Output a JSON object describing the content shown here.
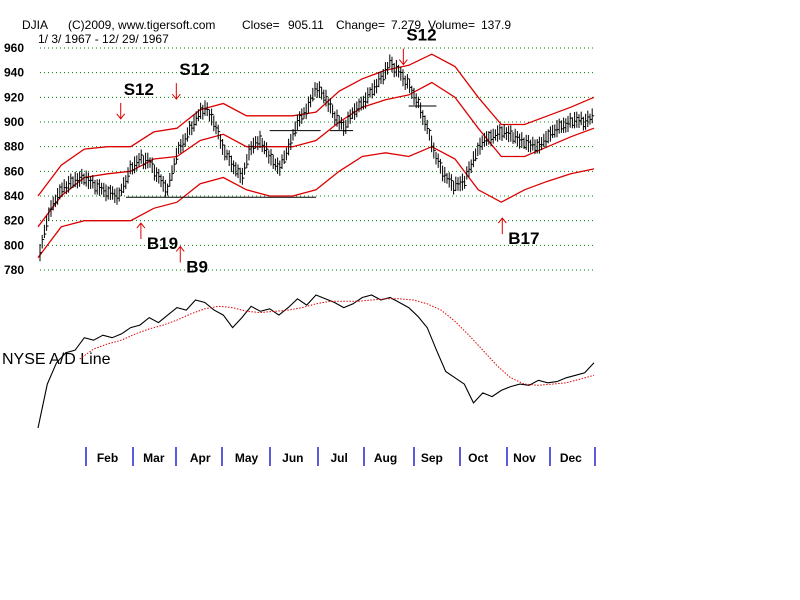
{
  "header": {
    "symbol": "DJIA",
    "copyright": "(C)2009, www.tigersoft.com",
    "close_label": "Close=",
    "close_value": "905.11",
    "change_label": "Change=",
    "change_value": "7.279",
    "volume_label": "Volume=",
    "volume_value": "137.9",
    "date_range": "1/ 3/ 1967 - 12/ 29/ 1967"
  },
  "indicator_label": "NYSE A/D Line",
  "colors": {
    "price_bars": "#000000",
    "bands": "#dd0000",
    "grid": "#008000",
    "month_ticks": "#0000cc",
    "signal_arrows": "#dd0000",
    "ad_line": "#000000",
    "ad_moving_average": "#dd0000"
  },
  "chart_data": {
    "type": "line",
    "ylim": [
      780,
      960
    ],
    "yticks": [
      960,
      940,
      920,
      900,
      880,
      860,
      840,
      820,
      800,
      780
    ],
    "grid": "horizontal dotted",
    "xlim": [
      0,
      12
    ],
    "months": [
      "Feb",
      "Mar",
      "Apr",
      "May",
      "Jun",
      "Jul",
      "Aug",
      "Sep",
      "Oct",
      "Nov",
      "Dec"
    ],
    "month_starts": [
      1,
      2,
      3,
      4,
      5,
      6,
      7,
      8,
      9,
      10,
      11
    ],
    "price": {
      "x": [
        0,
        0.1,
        0.25,
        0.5,
        0.75,
        1.0,
        1.25,
        1.5,
        1.75,
        2.0,
        2.2,
        2.4,
        2.6,
        2.8,
        3.0,
        3.2,
        3.4,
        3.6,
        3.8,
        4.0,
        4.2,
        4.4,
        4.6,
        4.8,
        5.0,
        5.2,
        5.4,
        5.6,
        5.8,
        6.0,
        6.2,
        6.4,
        6.6,
        6.8,
        7.0,
        7.2,
        7.4,
        7.6,
        7.8,
        8.0,
        8.2,
        8.4,
        8.6,
        8.8,
        9.0,
        9.2,
        9.4,
        9.6,
        9.8,
        10.0,
        10.2,
        10.4,
        10.6,
        10.8,
        11.0,
        11.2,
        11.4,
        11.6,
        11.8,
        12.0
      ],
      "y": [
        786,
        805,
        828,
        845,
        852,
        855,
        848,
        843,
        840,
        862,
        870,
        868,
        855,
        845,
        875,
        888,
        902,
        912,
        900,
        878,
        865,
        855,
        880,
        885,
        872,
        862,
        878,
        900,
        910,
        928,
        920,
        905,
        895,
        908,
        915,
        925,
        935,
        948,
        940,
        930,
        915,
        895,
        870,
        855,
        848,
        852,
        870,
        885,
        888,
        892,
        890,
        885,
        882,
        880,
        888,
        895,
        898,
        902,
        900,
        905
      ]
    },
    "bands": {
      "x": [
        0,
        0.5,
        1,
        1.5,
        2,
        2.5,
        3,
        3.5,
        4,
        4.5,
        5,
        5.5,
        6,
        6.5,
        7,
        7.5,
        8,
        8.5,
        9,
        9.5,
        10,
        10.5,
        11,
        11.5,
        12
      ],
      "upper": [
        840,
        865,
        878,
        880,
        880,
        892,
        895,
        910,
        915,
        905,
        905,
        905,
        908,
        925,
        935,
        942,
        946,
        955,
        945,
        920,
        898,
        898,
        905,
        912,
        920
      ],
      "middle": [
        815,
        840,
        855,
        858,
        860,
        870,
        872,
        885,
        890,
        880,
        880,
        880,
        885,
        900,
        912,
        918,
        922,
        932,
        920,
        895,
        872,
        872,
        880,
        888,
        895
      ],
      "lower": [
        790,
        815,
        820,
        820,
        820,
        830,
        835,
        850,
        855,
        845,
        840,
        840,
        845,
        860,
        872,
        875,
        872,
        880,
        870,
        845,
        835,
        845,
        852,
        858,
        862
      ]
    },
    "support_lines": [
      {
        "x0": 1.9,
        "x1": 6.0,
        "y": 839
      },
      {
        "x0": 5.0,
        "x1": 6.1,
        "y": 893
      },
      {
        "x0": 6.3,
        "x1": 6.8,
        "y": 893
      },
      {
        "x0": 8.0,
        "x1": 8.6,
        "y": 913
      }
    ],
    "signals": [
      {
        "label": "S12",
        "x": 1.85,
        "y": 922,
        "type": "sell"
      },
      {
        "label": "S12",
        "x": 3.05,
        "y": 938,
        "type": "sell"
      },
      {
        "label": "S12",
        "x": 7.95,
        "y": 966,
        "type": "sell"
      },
      {
        "label": "B19",
        "x": 2.35,
        "y": 797,
        "type": "buy"
      },
      {
        "label": "B9",
        "x": 3.2,
        "y": 778,
        "type": "buy"
      },
      {
        "label": "B17",
        "x": 10.15,
        "y": 801,
        "type": "buy"
      }
    ],
    "ad_line": {
      "x": [
        0,
        0.2,
        0.4,
        0.6,
        0.8,
        1.0,
        1.2,
        1.4,
        1.6,
        1.8,
        2.0,
        2.2,
        2.4,
        2.6,
        2.8,
        3.0,
        3.2,
        3.4,
        3.6,
        3.8,
        4.0,
        4.2,
        4.4,
        4.6,
        4.8,
        5.0,
        5.2,
        5.4,
        5.6,
        5.8,
        6.0,
        6.2,
        6.4,
        6.6,
        6.8,
        7.0,
        7.2,
        7.4,
        7.6,
        7.8,
        8.0,
        8.2,
        8.4,
        8.6,
        8.8,
        9.0,
        9.2,
        9.4,
        9.6,
        9.8,
        10.0,
        10.2,
        10.4,
        10.6,
        10.8,
        11.0,
        11.2,
        11.4,
        11.6,
        11.8,
        12.0
      ],
      "y": [
        0,
        35,
        52,
        60,
        62,
        72,
        70,
        74,
        72,
        75,
        80,
        82,
        88,
        84,
        90,
        96,
        94,
        102,
        100,
        94,
        90,
        80,
        88,
        97,
        93,
        95,
        90,
        96,
        103,
        98,
        106,
        103,
        100,
        96,
        99,
        104,
        106,
        102,
        104,
        100,
        96,
        89,
        80,
        62,
        45,
        40,
        35,
        20,
        28,
        25,
        30,
        33,
        35,
        34,
        38,
        36,
        37,
        40,
        42,
        44,
        52
      ]
    },
    "ad_ma": {
      "x": [
        0.9,
        1.2,
        1.5,
        1.8,
        2.1,
        2.4,
        2.7,
        3.0,
        3.3,
        3.6,
        3.9,
        4.2,
        4.5,
        4.8,
        5.1,
        5.4,
        5.7,
        6.0,
        6.3,
        6.6,
        6.9,
        7.2,
        7.5,
        7.8,
        8.1,
        8.4,
        8.7,
        9.0,
        9.3,
        9.6,
        9.9,
        10.2,
        10.5,
        10.8,
        11.1,
        11.4,
        11.7,
        12.0
      ],
      "y": [
        55,
        63,
        67,
        70,
        75,
        79,
        82,
        86,
        91,
        95,
        97,
        96,
        93,
        92,
        93,
        94,
        96,
        99,
        101,
        101,
        101,
        102,
        103,
        103,
        102,
        99,
        94,
        85,
        74,
        62,
        50,
        40,
        35,
        34,
        35,
        36,
        39,
        42
      ]
    }
  }
}
